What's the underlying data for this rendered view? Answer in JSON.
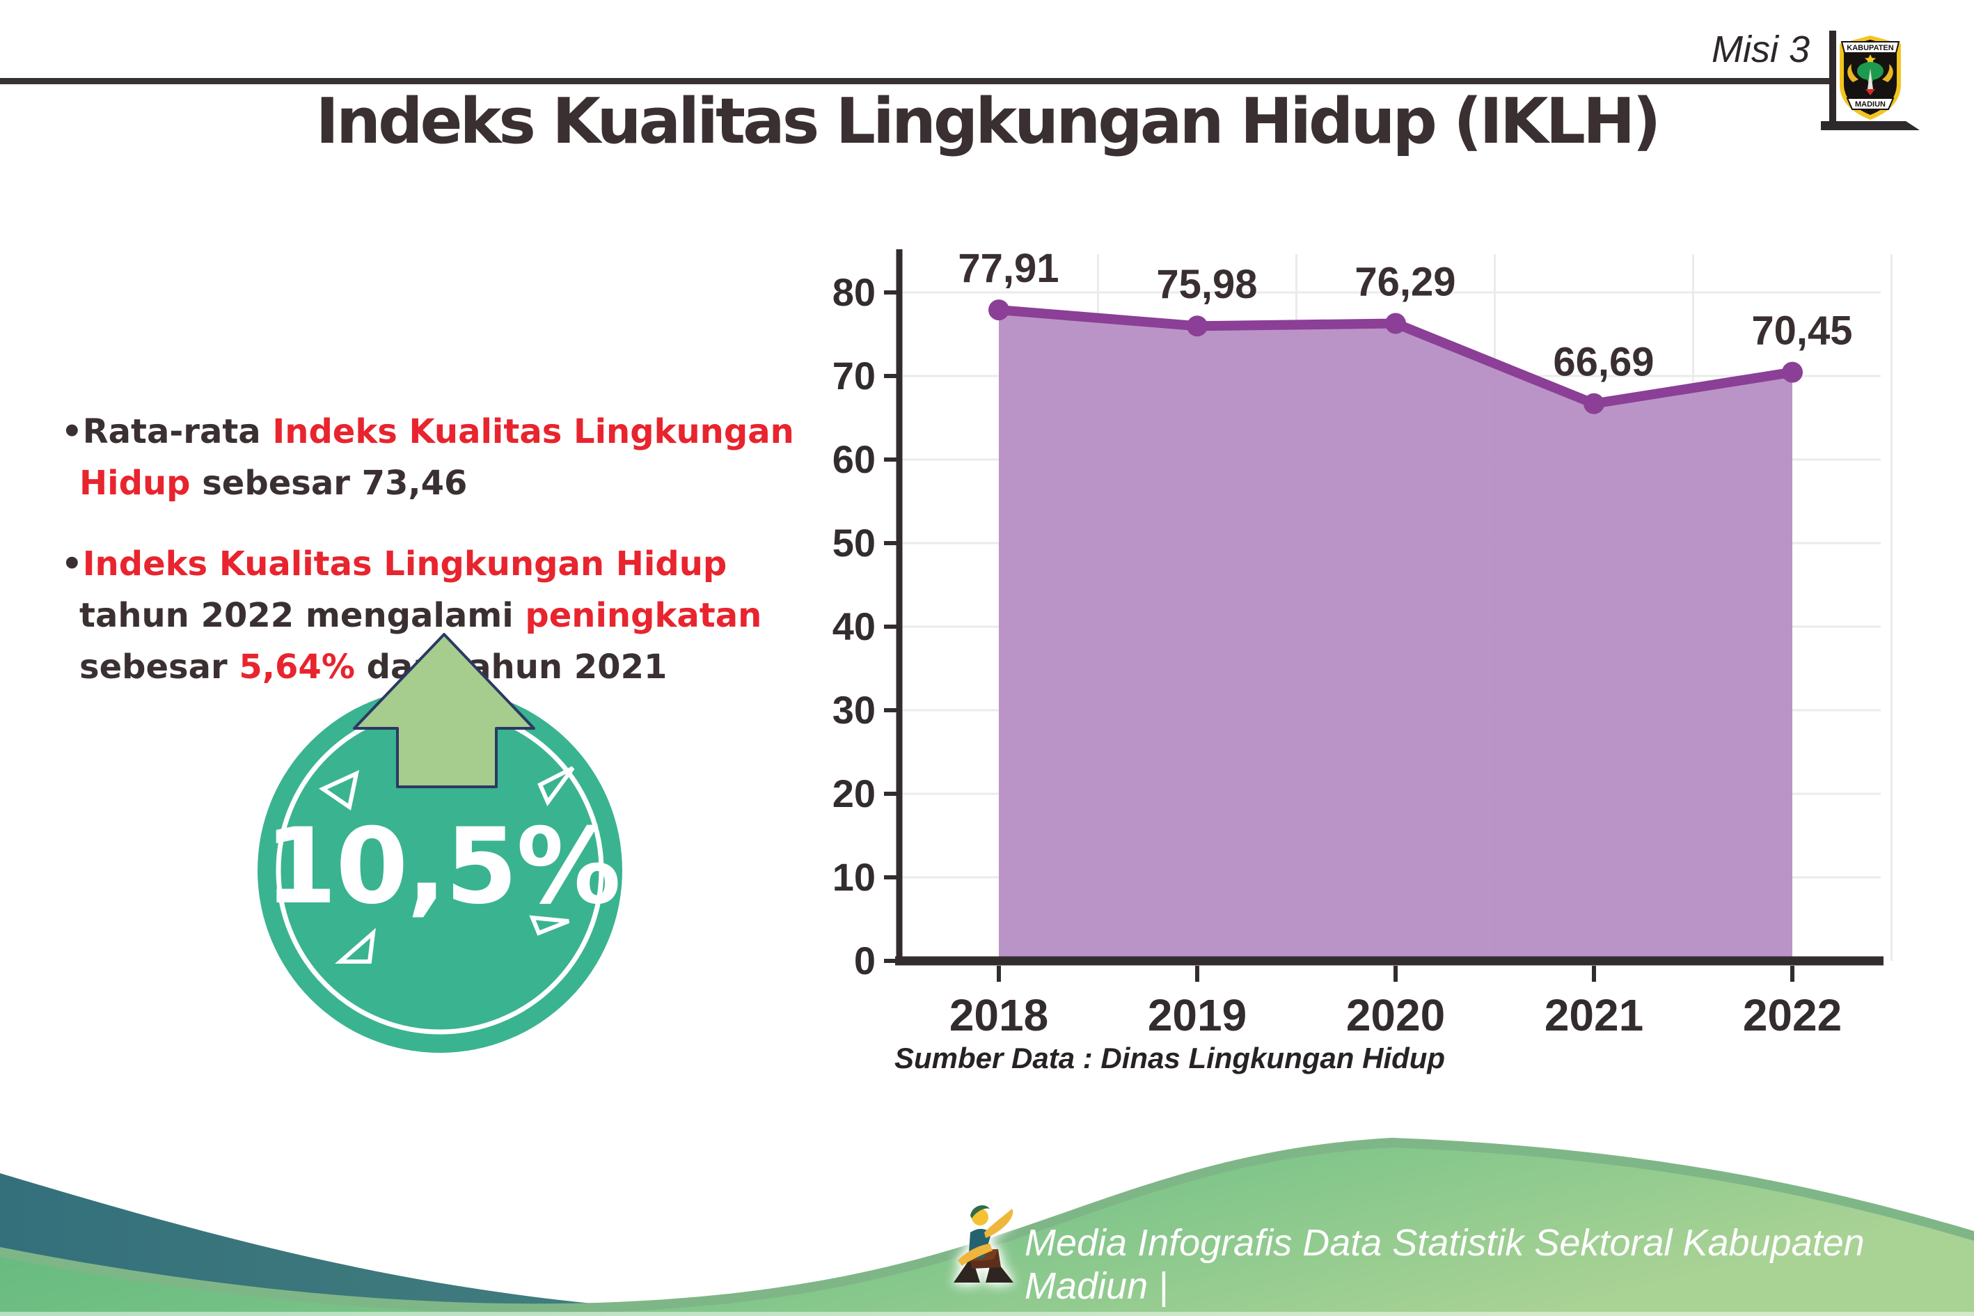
{
  "header": {
    "misi_label": "Misi 3",
    "title": "Indeks Kualitas Lingkungan Hidup (IKLH)"
  },
  "logo": {
    "top_text": "KABUPATEN",
    "bottom_text": "MADIUN"
  },
  "bullet_char": "•",
  "bullets": [
    {
      "segments": [
        {
          "t": "Rata-rata ",
          "c": "dark"
        },
        {
          "t": "Indeks Kualitas Lingkungan Hidup",
          "c": "red"
        },
        {
          "t": " sebesar 73,46",
          "c": "dark"
        }
      ]
    },
    {
      "segments": [
        {
          "t": "Indeks Kualitas Lingkungan Hidup",
          "c": "red"
        },
        {
          "t": " tahun 2022 mengalami ",
          "c": "dark"
        },
        {
          "t": "peningkatan",
          "c": "red"
        },
        {
          "t": " sebesar ",
          "c": "dark"
        },
        {
          "t": "5,64%",
          "c": "red"
        },
        {
          "t": " dari tahun 2021",
          "c": "dark"
        }
      ]
    }
  ],
  "badge": {
    "value": "10,5%",
    "circle_color": "#3ab390",
    "arrow_color": "#a6cc8e",
    "arrow_outline": "#2b3963"
  },
  "chart_data": {
    "type": "area",
    "categories": [
      "2018",
      "2019",
      "2020",
      "2021",
      "2022"
    ],
    "values": [
      77.91,
      75.98,
      76.29,
      66.69,
      70.45
    ],
    "value_labels": [
      "77,91",
      "75,98",
      "76,29",
      "66,69",
      "70,45"
    ],
    "title": "",
    "xlabel": "",
    "ylabel": "",
    "ylim": [
      0,
      80
    ],
    "ytick_step": 10,
    "grid": true,
    "legend": false,
    "line_color": "#8b3f96",
    "fill_color": "#b78ec4",
    "axis_color": "#332c2e",
    "grid_color": "#ebebeb",
    "source_note": "Sumber Data : Dinas Lingkungan Hidup"
  },
  "footer": {
    "credit": "Media Infografis Data Statistik Sektoral Kabupaten Madiun |"
  },
  "colors": {
    "text_dark": "#3a3032",
    "text_red": "#e8242e",
    "wave_teal_1": "#34707c",
    "wave_teal_2": "#60997f",
    "wave_sage": "#7fb687",
    "wave_green_1": "#5cb679",
    "wave_green_2": "#a9d295"
  }
}
